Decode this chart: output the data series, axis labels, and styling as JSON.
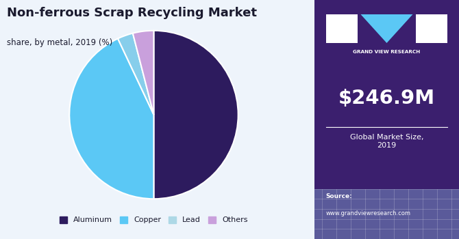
{
  "title": "Non-ferrous Scrap Recycling Market",
  "subtitle": "share, by metal, 2019 (%)",
  "pie_labels": [
    "Aluminum",
    "Copper",
    "Lead",
    "Others"
  ],
  "pie_values": [
    50,
    43,
    3,
    4
  ],
  "pie_colors": [
    "#2d1b5e",
    "#5bc8f5",
    "#87CEEB",
    "#c9a0dc"
  ],
  "pie_startangle": 90,
  "legend_labels": [
    "Aluminum",
    "Copper",
    "Lead",
    "Others"
  ],
  "legend_colors": [
    "#2d1b5e",
    "#5bc8f5",
    "#add8e6",
    "#c9a0dc"
  ],
  "sidebar_bg": "#3b1f6e",
  "sidebar_bottom_bg": "#5a5a9a",
  "market_size": "$246.9M",
  "market_label": "Global Market Size,\n2019",
  "source_label": "Source:",
  "source_url": "www.grandviewresearch.com",
  "main_bg": "#eef4fb",
  "title_color": "#1a1a2e"
}
